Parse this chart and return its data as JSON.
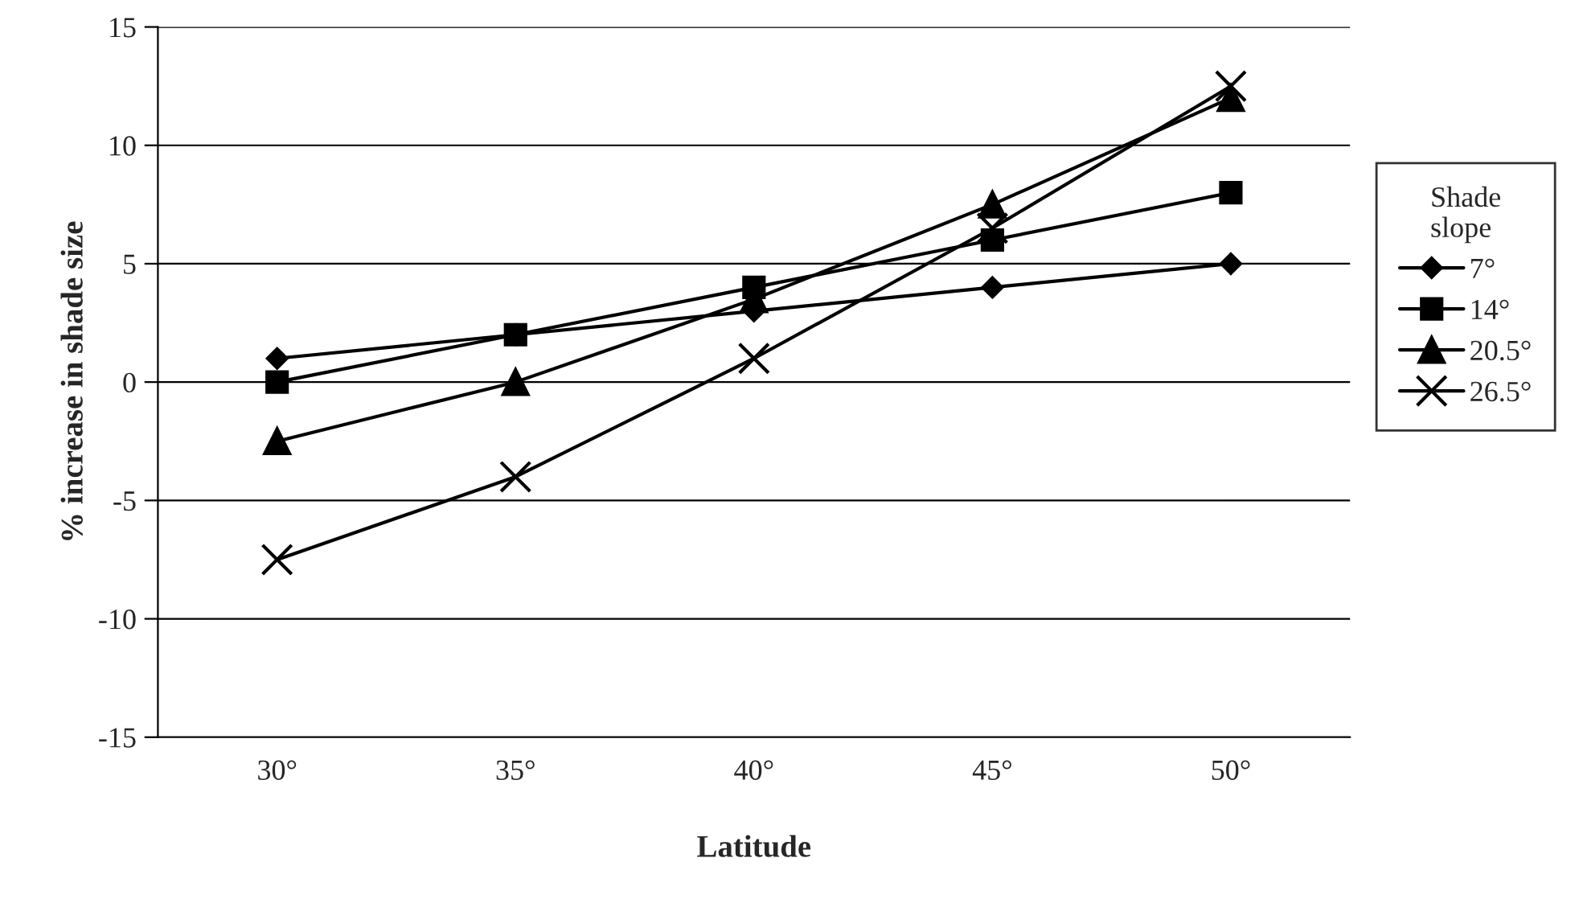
{
  "chart_data": {
    "type": "line",
    "xlabel": "Latitude",
    "ylabel": "% increase in shade size",
    "legend_title": "Shade\nslope",
    "categories": [
      "30°",
      "35°",
      "40°",
      "45°",
      "50°"
    ],
    "series": [
      {
        "name": "7°",
        "color": "#000000",
        "marker": "diamond",
        "values": [
          1,
          2,
          3,
          4,
          5
        ]
      },
      {
        "name": "14°",
        "color": "#000000",
        "marker": "square",
        "values": [
          0,
          2,
          4,
          6,
          8
        ]
      },
      {
        "name": "20.5°",
        "color": "#000000",
        "marker": "triangle",
        "values": [
          -2.5,
          0,
          3.5,
          7.5,
          12
        ]
      },
      {
        "name": "26.5°",
        "color": "#000000",
        "marker": "cross",
        "values": [
          -7.5,
          -4,
          1,
          6.5,
          12.5
        ]
      }
    ],
    "ylim": [
      -15,
      15
    ],
    "yticks": [
      -15,
      -10,
      -5,
      0,
      5,
      10,
      15
    ],
    "grid": "y",
    "legend": "right",
    "line_style": "solid"
  }
}
